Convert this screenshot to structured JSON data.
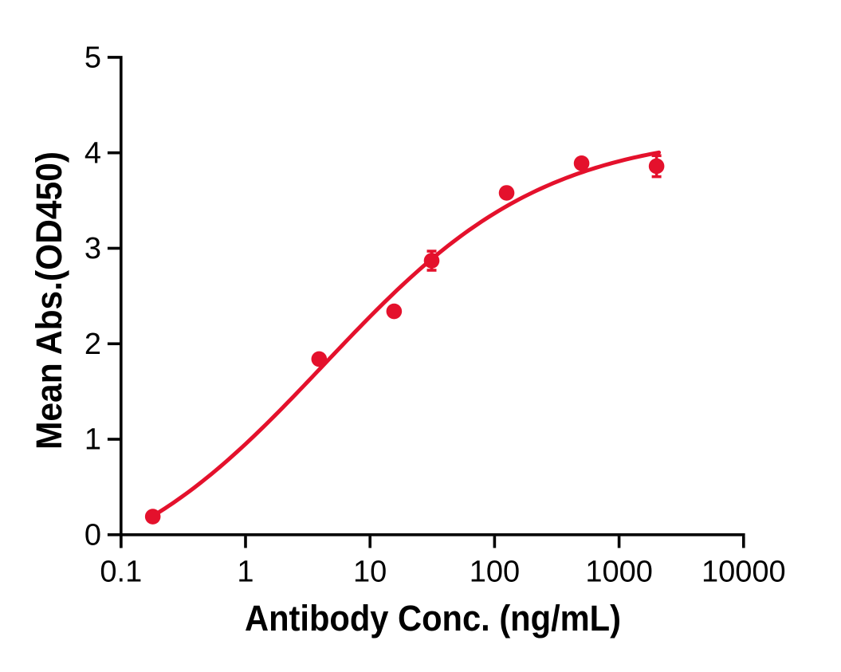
{
  "palette": {
    "series_red": "#e4112c",
    "axis_black": "#000000",
    "background": "#ffffff"
  },
  "chart_data": {
    "type": "scatter",
    "title": "",
    "xlabel": "Antibody Conc. (ng/mL)",
    "ylabel": "Mean Abs.(OD450)",
    "x_scale": "log10",
    "xlim": [
      0.1,
      10000
    ],
    "ylim": [
      0,
      5
    ],
    "x_ticks": [
      0.1,
      1,
      10,
      100,
      1000,
      10000
    ],
    "x_tick_labels": [
      "0.1",
      "1",
      "10",
      "100",
      "1000",
      "10000"
    ],
    "y_ticks": [
      0,
      1,
      2,
      3,
      4,
      5
    ],
    "y_tick_labels": [
      "0",
      "1",
      "2",
      "3",
      "4",
      "5"
    ],
    "grid": false,
    "legend": false,
    "series": [
      {
        "name": "",
        "marker": "circle",
        "color": "#e4112c",
        "x": [
          0.18,
          3.9,
          15.6,
          31.25,
          125,
          500,
          2000
        ],
        "y": [
          0.19,
          1.84,
          2.34,
          2.87,
          3.58,
          3.89,
          3.86
        ],
        "y_err": [
          0,
          0,
          0,
          0.1,
          0,
          0,
          0.11
        ]
      }
    ],
    "fit_curve": {
      "model": "four-parameter logistic (sigmoidal dose-response)",
      "color": "#e4112c",
      "bottom": -0.6642,
      "top": 4.2302,
      "log_ec50": 0.6305,
      "hill": 0.4884,
      "x_range_log10": [
        -0.7497,
        3.32
      ]
    }
  }
}
